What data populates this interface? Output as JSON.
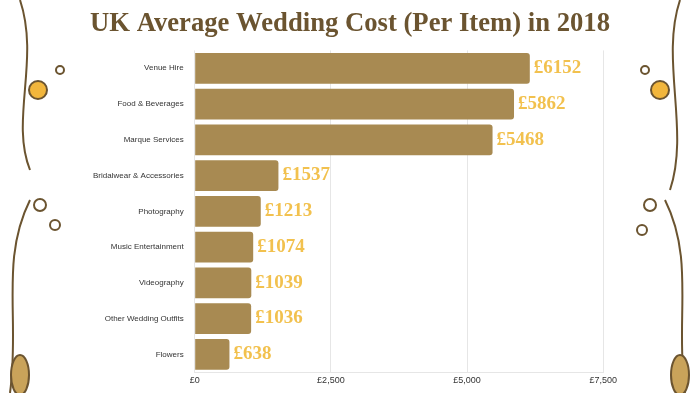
{
  "chart_data": {
    "type": "bar",
    "orientation": "horizontal",
    "title": "UK Average Wedding Cost (Per Item) in 2018",
    "categories": [
      "Venue Hire",
      "Food & Beverages",
      "Marque Services",
      "Bridalwear & Accessories",
      "Photography",
      "Music Entertainment",
      "Videography",
      "Other Wedding Outfits",
      "Flowers"
    ],
    "values": [
      6152,
      5862,
      5468,
      1537,
      1213,
      1074,
      1039,
      1036,
      638
    ],
    "value_labels": [
      "£6152",
      "£5862",
      "£5468",
      "£1537",
      "£1213",
      "£1074",
      "£1039",
      "£1036",
      "£638"
    ],
    "data_labels": true,
    "color": "#a88a52",
    "xlim": [
      0,
      7500
    ],
    "xticks": [
      {
        "value": 0,
        "label": "£0"
      },
      {
        "value": 2500,
        "label": "£2,500"
      },
      {
        "value": 5000,
        "label": "£5,000"
      },
      {
        "value": 7500,
        "label": "£7,500"
      }
    ],
    "grid": true
  }
}
